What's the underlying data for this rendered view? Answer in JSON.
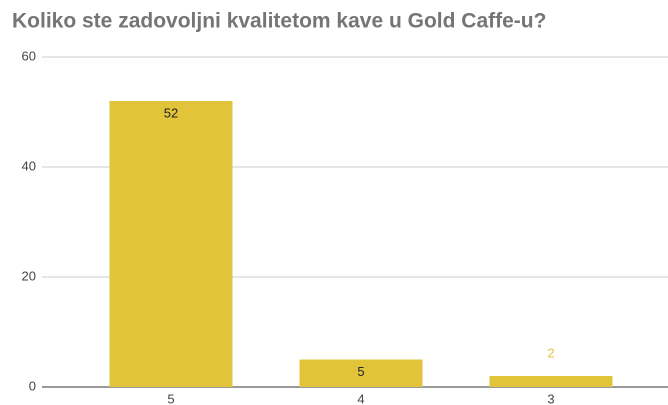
{
  "chart_data": {
    "type": "bar",
    "title": "Koliko ste zadovoljni kvalitetom kave u Gold Caffe-u?",
    "categories": [
      "5",
      "4",
      "3"
    ],
    "values": [
      52,
      5,
      2
    ],
    "color": "#e2c43b",
    "ylim": [
      0,
      60
    ],
    "yticks": [
      0,
      20,
      40,
      60
    ],
    "grid": true
  }
}
